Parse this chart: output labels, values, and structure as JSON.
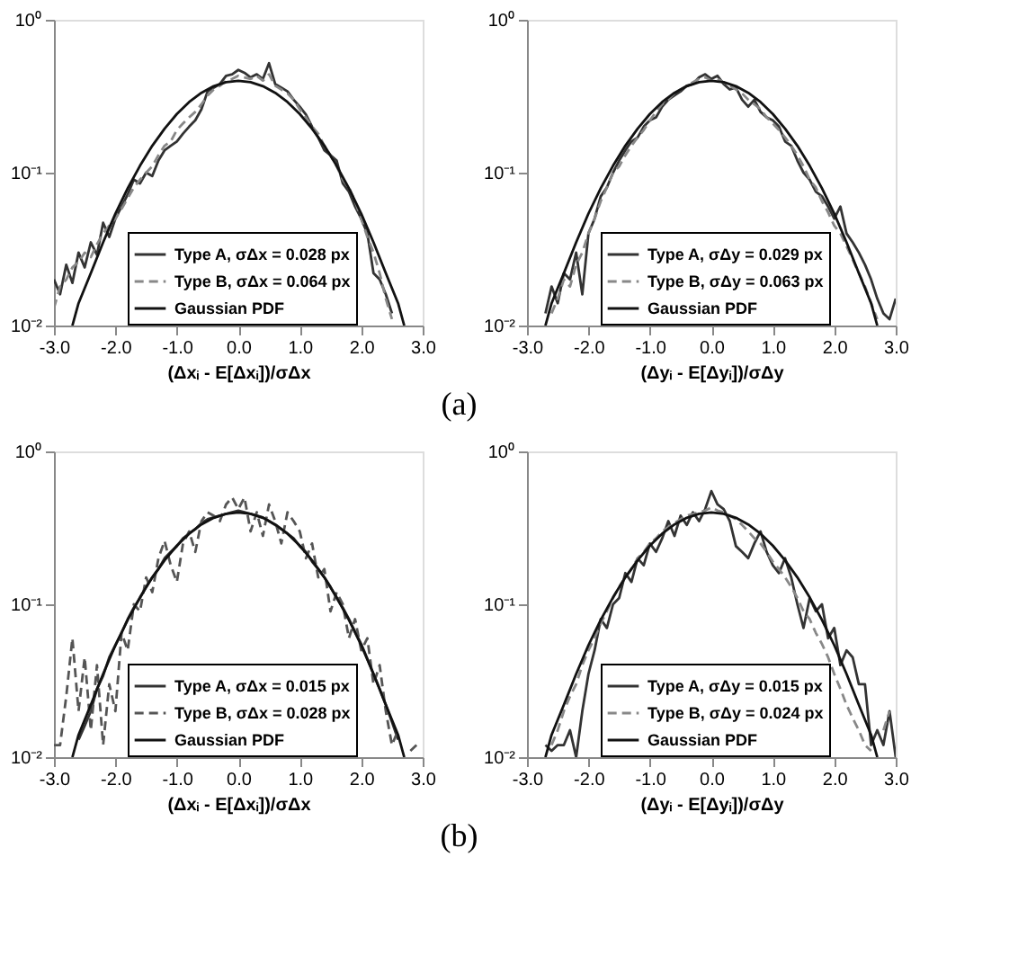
{
  "chart_data": [
    {
      "type": "line",
      "xlabel": "(Δxᵢ - E[Δxᵢ])/σΔx",
      "annotations": [
        "(a)"
      ],
      "legend": "bottom",
      "grid": false,
      "log": "y",
      "xlim": [
        -3,
        3
      ],
      "xticks": [
        {
          "value": -3,
          "label": "-3.0"
        },
        {
          "value": -2,
          "label": "-2.0"
        },
        {
          "value": -1,
          "label": "-1.0"
        },
        {
          "value": 0,
          "label": "0.0"
        },
        {
          "value": 1,
          "label": "1.0"
        },
        {
          "value": 2,
          "label": "2.0"
        },
        {
          "value": 3,
          "label": "3.0"
        }
      ],
      "ylim": [
        0.01,
        1
      ],
      "yticks": [
        {
          "value": 0.01,
          "label": "10⁻²"
        },
        {
          "value": 0.1,
          "label": "10⁻¹"
        },
        {
          "value": 1,
          "label": "10⁰"
        }
      ],
      "x": [
        -3.0,
        -2.9,
        -2.8,
        -2.7,
        -2.6,
        -2.5,
        -2.4,
        -2.3,
        -2.2,
        -2.1,
        -2.0,
        -1.9,
        -1.8,
        -1.7,
        -1.6,
        -1.5,
        -1.4,
        -1.3,
        -1.2,
        -1.1,
        -1.0,
        -0.9,
        -0.8,
        -0.7,
        -0.6,
        -0.5,
        -0.4,
        -0.3,
        -0.2,
        -0.1,
        0.0,
        0.1,
        0.2,
        0.3,
        0.4,
        0.5,
        0.6,
        0.7,
        0.8,
        0.9,
        1.0,
        1.1,
        1.2,
        1.3,
        1.4,
        1.5,
        1.6,
        1.7,
        1.8,
        1.9,
        2.0,
        2.1,
        2.2,
        2.3,
        2.4,
        2.5
      ],
      "series": [
        {
          "name": "Type A, σΔx = 0.028 px",
          "color": "#333333",
          "line_style": "solid",
          "values": [
            0.02,
            0.016,
            0.025,
            0.019,
            0.03,
            0.024,
            0.035,
            0.029,
            0.047,
            0.038,
            0.05,
            0.06,
            0.072,
            0.09,
            0.085,
            0.1,
            0.095,
            0.12,
            0.14,
            0.15,
            0.16,
            0.18,
            0.2,
            0.22,
            0.26,
            0.34,
            0.36,
            0.38,
            0.43,
            0.44,
            0.47,
            0.45,
            0.42,
            0.44,
            0.41,
            0.52,
            0.38,
            0.36,
            0.34,
            0.3,
            0.27,
            0.24,
            0.2,
            0.17,
            0.14,
            0.13,
            0.12,
            0.085,
            0.075,
            0.06,
            0.05,
            0.04,
            0.022,
            0.02,
            0.016,
            0.012
          ]
        },
        {
          "name": "Type B, σΔx = 0.064 px",
          "color": "#888888",
          "line_style": "dashed",
          "values": [
            0.013,
            0.018,
            0.02,
            0.024,
            0.026,
            0.03,
            0.028,
            0.034,
            0.04,
            0.045,
            0.05,
            0.058,
            0.068,
            0.08,
            0.09,
            0.1,
            0.11,
            0.13,
            0.15,
            0.16,
            0.19,
            0.21,
            0.23,
            0.25,
            0.28,
            0.32,
            0.35,
            0.37,
            0.4,
            0.41,
            0.43,
            0.42,
            0.41,
            0.43,
            0.4,
            0.44,
            0.37,
            0.35,
            0.33,
            0.3,
            0.26,
            0.23,
            0.2,
            0.18,
            0.15,
            0.13,
            0.11,
            0.09,
            0.08,
            0.065,
            0.05,
            0.038,
            0.03,
            0.022,
            0.015,
            0.011
          ]
        },
        {
          "name": "Gaussian PDF",
          "color": "#111111",
          "line_style": "solid",
          "x": [
            -2.7,
            -2.6,
            -2.4,
            -2.2,
            -2.0,
            -1.8,
            -1.6,
            -1.4,
            -1.2,
            -1.0,
            -0.8,
            -0.6,
            -0.4,
            -0.2,
            0.0,
            0.2,
            0.4,
            0.6,
            0.8,
            1.0,
            1.2,
            1.4,
            1.6,
            1.8,
            2.0,
            2.2,
            2.4,
            2.6,
            2.7
          ],
          "values": [
            0.01,
            0.014,
            0.022,
            0.035,
            0.054,
            0.079,
            0.111,
            0.15,
            0.194,
            0.242,
            0.29,
            0.333,
            0.368,
            0.391,
            0.399,
            0.391,
            0.368,
            0.333,
            0.29,
            0.242,
            0.194,
            0.15,
            0.111,
            0.079,
            0.054,
            0.035,
            0.022,
            0.014,
            0.01
          ]
        }
      ]
    },
    {
      "type": "line",
      "xlabel": "(Δyᵢ - E[Δyᵢ])/σΔy",
      "legend": "bottom",
      "grid": false,
      "log": "y",
      "xlim": [
        -3,
        3
      ],
      "xticks": [
        {
          "value": -3,
          "label": "-3.0"
        },
        {
          "value": -2,
          "label": "-2.0"
        },
        {
          "value": -1,
          "label": "-1.0"
        },
        {
          "value": 0,
          "label": "0.0"
        },
        {
          "value": 1,
          "label": "1.0"
        },
        {
          "value": 2,
          "label": "2.0"
        },
        {
          "value": 3,
          "label": "3.0"
        }
      ],
      "ylim": [
        0.01,
        1
      ],
      "yticks": [
        {
          "value": 0.01,
          "label": "10⁻²"
        },
        {
          "value": 0.1,
          "label": "10⁻¹"
        },
        {
          "value": 1,
          "label": "10⁰"
        }
      ],
      "x": [
        -2.7,
        -2.6,
        -2.5,
        -2.4,
        -2.3,
        -2.2,
        -2.1,
        -2.0,
        -1.9,
        -1.8,
        -1.7,
        -1.6,
        -1.5,
        -1.4,
        -1.3,
        -1.2,
        -1.1,
        -1.0,
        -0.9,
        -0.8,
        -0.7,
        -0.6,
        -0.5,
        -0.4,
        -0.3,
        -0.2,
        -0.1,
        0.0,
        0.1,
        0.2,
        0.3,
        0.4,
        0.5,
        0.6,
        0.7,
        0.8,
        0.9,
        1.0,
        1.1,
        1.2,
        1.3,
        1.4,
        1.5,
        1.6,
        1.7,
        1.8,
        1.9,
        2.0,
        2.1,
        2.2,
        2.3,
        2.4,
        2.5,
        2.6,
        2.7,
        2.8,
        2.9,
        3.0
      ],
      "series": [
        {
          "name": "Type A, σΔy = 0.029 px",
          "color": "#333333",
          "line_style": "solid",
          "values": [
            0.012,
            0.018,
            0.014,
            0.022,
            0.02,
            0.03,
            0.016,
            0.04,
            0.05,
            0.07,
            0.08,
            0.1,
            0.12,
            0.14,
            0.16,
            0.17,
            0.2,
            0.22,
            0.23,
            0.27,
            0.3,
            0.32,
            0.34,
            0.37,
            0.38,
            0.42,
            0.44,
            0.41,
            0.43,
            0.38,
            0.35,
            0.36,
            0.3,
            0.27,
            0.3,
            0.25,
            0.23,
            0.22,
            0.2,
            0.16,
            0.15,
            0.12,
            0.1,
            0.09,
            0.075,
            0.07,
            0.06,
            0.05,
            0.06,
            0.04,
            0.035,
            0.03,
            0.025,
            0.02,
            0.015,
            0.012,
            0.011,
            0.015
          ]
        },
        {
          "name": "Type B, σΔy = 0.063 px",
          "color": "#888888",
          "line_style": "dashed",
          "values": [
            null,
            0.012,
            0.015,
            0.02,
            0.018,
            0.025,
            0.03,
            0.04,
            0.05,
            0.065,
            0.08,
            0.1,
            0.11,
            0.13,
            0.15,
            0.17,
            0.19,
            0.22,
            0.25,
            0.28,
            0.3,
            0.33,
            0.35,
            0.37,
            0.39,
            0.41,
            0.42,
            0.4,
            0.41,
            0.39,
            0.37,
            0.35,
            0.33,
            0.3,
            0.28,
            0.26,
            0.23,
            0.21,
            0.19,
            0.17,
            0.15,
            0.13,
            0.11,
            0.09,
            0.08,
            0.065,
            0.055,
            0.045,
            0.04,
            0.033,
            0.027,
            0.022,
            0.018,
            0.014,
            0.011,
            null,
            null,
            null
          ]
        },
        {
          "name": "Gaussian PDF",
          "color": "#111111",
          "line_style": "solid",
          "x": [
            -2.7,
            -2.6,
            -2.4,
            -2.2,
            -2.0,
            -1.8,
            -1.6,
            -1.4,
            -1.2,
            -1.0,
            -0.8,
            -0.6,
            -0.4,
            -0.2,
            0.0,
            0.2,
            0.4,
            0.6,
            0.8,
            1.0,
            1.2,
            1.4,
            1.6,
            1.8,
            2.0,
            2.2,
            2.4,
            2.6,
            2.7
          ],
          "values": [
            0.01,
            0.014,
            0.022,
            0.035,
            0.054,
            0.079,
            0.111,
            0.15,
            0.194,
            0.242,
            0.29,
            0.333,
            0.368,
            0.391,
            0.399,
            0.391,
            0.368,
            0.333,
            0.29,
            0.242,
            0.194,
            0.15,
            0.111,
            0.079,
            0.054,
            0.035,
            0.022,
            0.014,
            0.01
          ]
        }
      ]
    },
    {
      "type": "line",
      "xlabel": "(Δxᵢ - E[Δxᵢ])/σΔx",
      "annotations": [
        "(b)"
      ],
      "legend": "bottom",
      "grid": false,
      "log": "y",
      "xlim": [
        -3,
        3
      ],
      "xticks": [
        {
          "value": -3,
          "label": "-3.0"
        },
        {
          "value": -2,
          "label": "-2.0"
        },
        {
          "value": -1,
          "label": "-1.0"
        },
        {
          "value": 0,
          "label": "0.0"
        },
        {
          "value": 1,
          "label": "1.0"
        },
        {
          "value": 2,
          "label": "2.0"
        },
        {
          "value": 3,
          "label": "3.0"
        }
      ],
      "ylim": [
        0.01,
        1
      ],
      "yticks": [
        {
          "value": 0.01,
          "label": "10⁻²"
        },
        {
          "value": 0.1,
          "label": "10⁻¹"
        },
        {
          "value": 1,
          "label": "10⁰"
        }
      ],
      "x": [
        -3.0,
        -2.9,
        -2.8,
        -2.7,
        -2.6,
        -2.5,
        -2.4,
        -2.3,
        -2.2,
        -2.1,
        -2.0,
        -1.9,
        -1.8,
        -1.7,
        -1.6,
        -1.5,
        -1.4,
        -1.3,
        -1.2,
        -1.1,
        -1.0,
        -0.9,
        -0.8,
        -0.7,
        -0.6,
        -0.5,
        -0.4,
        -0.3,
        -0.2,
        -0.1,
        0.0,
        0.1,
        0.2,
        0.3,
        0.4,
        0.5,
        0.6,
        0.7,
        0.8,
        0.9,
        1.0,
        1.1,
        1.2,
        1.3,
        1.4,
        1.5,
        1.6,
        1.7,
        1.8,
        1.9,
        2.0,
        2.1,
        2.2,
        2.3,
        2.4,
        2.5,
        2.6,
        2.7,
        2.8,
        2.9
      ],
      "series": [
        {
          "name": "Type A, σΔx = 0.015 px",
          "color": "#333333",
          "line_style": "solid",
          "values": [
            null,
            null,
            null,
            null,
            0.013,
            0.016,
            0.02,
            0.028,
            0.034,
            0.045,
            0.054,
            0.065,
            0.08,
            0.095,
            0.11,
            0.13,
            0.15,
            0.17,
            0.2,
            0.22,
            0.24,
            0.27,
            0.29,
            0.31,
            0.34,
            0.36,
            0.37,
            0.38,
            0.39,
            0.4,
            0.41,
            0.4,
            0.39,
            0.38,
            0.37,
            0.35,
            0.33,
            0.31,
            0.29,
            0.27,
            0.24,
            0.22,
            0.19,
            0.17,
            0.15,
            0.13,
            0.11,
            0.095,
            0.08,
            0.066,
            0.055,
            0.044,
            0.035,
            0.028,
            0.022,
            0.017,
            0.013,
            null,
            null,
            null
          ]
        },
        {
          "name": "Type B, σΔx = 0.028 px",
          "color": "#555555",
          "line_style": "dashed",
          "values": [
            0.012,
            0.012,
            0.025,
            0.06,
            0.02,
            0.045,
            0.015,
            0.04,
            0.012,
            0.03,
            0.02,
            0.065,
            0.05,
            0.1,
            0.09,
            0.15,
            0.12,
            0.2,
            0.26,
            0.18,
            0.14,
            0.25,
            0.3,
            0.22,
            0.35,
            0.4,
            0.38,
            0.35,
            0.45,
            0.5,
            0.42,
            0.5,
            0.3,
            0.4,
            0.28,
            0.45,
            0.35,
            0.25,
            0.4,
            0.35,
            0.3,
            0.2,
            0.25,
            0.15,
            0.17,
            0.09,
            0.12,
            0.1,
            0.06,
            0.08,
            0.05,
            0.06,
            0.03,
            0.04,
            0.02,
            0.012,
            0.015,
            null,
            0.011,
            0.012
          ]
        },
        {
          "name": "Gaussian PDF",
          "color": "#111111",
          "line_style": "solid",
          "x": [
            -2.7,
            -2.6,
            -2.4,
            -2.2,
            -2.0,
            -1.8,
            -1.6,
            -1.4,
            -1.2,
            -1.0,
            -0.8,
            -0.6,
            -0.4,
            -0.2,
            0.0,
            0.2,
            0.4,
            0.6,
            0.8,
            1.0,
            1.2,
            1.4,
            1.6,
            1.8,
            2.0,
            2.2,
            2.4,
            2.6,
            2.7
          ],
          "values": [
            0.01,
            0.014,
            0.022,
            0.035,
            0.054,
            0.079,
            0.111,
            0.15,
            0.194,
            0.242,
            0.29,
            0.333,
            0.368,
            0.391,
            0.399,
            0.391,
            0.368,
            0.333,
            0.29,
            0.242,
            0.194,
            0.15,
            0.111,
            0.079,
            0.054,
            0.035,
            0.022,
            0.014,
            0.01
          ]
        }
      ]
    },
    {
      "type": "line",
      "xlabel": "(Δyᵢ - E[Δyᵢ])/σΔy",
      "legend": "bottom",
      "grid": false,
      "log": "y",
      "xlim": [
        -3,
        3
      ],
      "xticks": [
        {
          "value": -3,
          "label": "-3.0"
        },
        {
          "value": -2,
          "label": "-2.0"
        },
        {
          "value": -1,
          "label": "-1.0"
        },
        {
          "value": 0,
          "label": "0.0"
        },
        {
          "value": 1,
          "label": "1.0"
        },
        {
          "value": 2,
          "label": "2.0"
        },
        {
          "value": 3,
          "label": "3.0"
        }
      ],
      "ylim": [
        0.01,
        1
      ],
      "yticks": [
        {
          "value": 0.01,
          "label": "10⁻²"
        },
        {
          "value": 0.1,
          "label": "10⁻¹"
        },
        {
          "value": 1,
          "label": "10⁰"
        }
      ],
      "x": [
        -2.7,
        -2.6,
        -2.5,
        -2.4,
        -2.3,
        -2.2,
        -2.1,
        -2.0,
        -1.9,
        -1.8,
        -1.7,
        -1.6,
        -1.5,
        -1.4,
        -1.3,
        -1.2,
        -1.1,
        -1.0,
        -0.9,
        -0.8,
        -0.7,
        -0.6,
        -0.5,
        -0.4,
        -0.3,
        -0.2,
        -0.1,
        0.0,
        0.1,
        0.2,
        0.3,
        0.4,
        0.5,
        0.6,
        0.7,
        0.8,
        0.9,
        1.0,
        1.1,
        1.2,
        1.3,
        1.4,
        1.5,
        1.6,
        1.7,
        1.8,
        1.9,
        2.0,
        2.1,
        2.2,
        2.3,
        2.4,
        2.5,
        2.6,
        2.7,
        2.8,
        2.9,
        3.0
      ],
      "series": [
        {
          "name": "Type A, σΔy = 0.015 px",
          "color": "#333333",
          "line_style": "solid",
          "values": [
            0.012,
            0.011,
            0.012,
            0.012,
            0.015,
            0.01,
            0.02,
            0.035,
            0.05,
            0.08,
            0.07,
            0.1,
            0.11,
            0.16,
            0.14,
            0.2,
            0.18,
            0.25,
            0.22,
            0.27,
            0.35,
            0.28,
            0.38,
            0.33,
            0.4,
            0.35,
            0.42,
            0.55,
            0.45,
            0.42,
            0.35,
            0.24,
            0.22,
            0.2,
            0.25,
            0.3,
            0.22,
            0.18,
            0.16,
            0.2,
            0.15,
            0.1,
            0.07,
            0.11,
            0.09,
            0.1,
            0.06,
            0.07,
            0.04,
            0.05,
            0.045,
            0.03,
            0.03,
            0.012,
            0.015,
            0.012,
            0.02,
            0.01
          ]
        },
        {
          "name": "Type B, σΔy = 0.024 px",
          "color": "#888888",
          "line_style": "dashed",
          "values": [
            null,
            0.012,
            0.015,
            0.02,
            0.025,
            0.03,
            0.04,
            0.05,
            0.06,
            0.075,
            0.09,
            0.11,
            0.13,
            0.15,
            0.17,
            0.2,
            0.22,
            0.25,
            0.27,
            0.3,
            0.32,
            0.34,
            0.36,
            0.38,
            0.39,
            0.4,
            0.41,
            0.43,
            0.41,
            0.4,
            0.38,
            0.36,
            0.33,
            0.3,
            0.27,
            0.25,
            0.22,
            0.19,
            0.17,
            0.15,
            0.13,
            0.11,
            0.09,
            0.08,
            0.065,
            0.055,
            0.045,
            0.035,
            0.028,
            0.022,
            0.018,
            0.015,
            0.012,
            0.011,
            null,
            0.015,
            0.02,
            null
          ]
        },
        {
          "name": "Gaussian PDF",
          "color": "#111111",
          "line_style": "solid",
          "x": [
            -2.7,
            -2.6,
            -2.4,
            -2.2,
            -2.0,
            -1.8,
            -1.6,
            -1.4,
            -1.2,
            -1.0,
            -0.8,
            -0.6,
            -0.4,
            -0.2,
            0.0,
            0.2,
            0.4,
            0.6,
            0.8,
            1.0,
            1.2,
            1.4,
            1.6,
            1.8,
            2.0,
            2.2,
            2.4,
            2.6,
            2.7
          ],
          "values": [
            0.01,
            0.014,
            0.022,
            0.035,
            0.054,
            0.079,
            0.111,
            0.15,
            0.194,
            0.242,
            0.29,
            0.333,
            0.368,
            0.391,
            0.399,
            0.391,
            0.368,
            0.333,
            0.29,
            0.242,
            0.194,
            0.15,
            0.111,
            0.079,
            0.054,
            0.035,
            0.022,
            0.014,
            0.01
          ]
        }
      ]
    }
  ]
}
